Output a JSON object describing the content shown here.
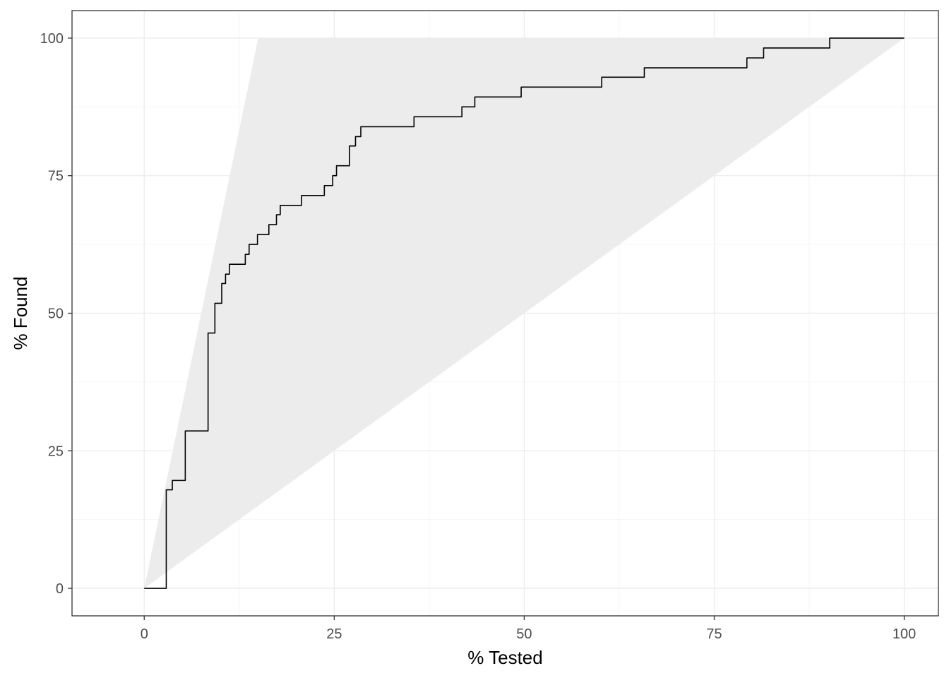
{
  "chart_data": {
    "type": "area",
    "xlabel": "% Tested",
    "ylabel": "% Found",
    "xlim": [
      -9.5,
      104.5
    ],
    "ylim": [
      -5,
      105
    ],
    "x_ticks": [
      0,
      25,
      50,
      75,
      100
    ],
    "y_ticks": [
      0,
      25,
      50,
      75,
      100
    ],
    "grid": true,
    "colors": {
      "band": "#ebebeb",
      "line": "#000000",
      "panel_border": "#333333"
    },
    "band": {
      "name": "",
      "upper": {
        "x": [
          0,
          15,
          100
        ],
        "y": [
          0,
          100,
          100
        ]
      },
      "lower": {
        "x": [
          0,
          100
        ],
        "y": [
          0,
          100
        ]
      }
    },
    "series": [
      {
        "name": "",
        "step": true,
        "x": [
          0,
          2.9,
          3.7,
          5.4,
          8.4,
          9.3,
          10.2,
          10.7,
          11.2,
          13.3,
          13.8,
          14.9,
          16.4,
          17.4,
          17.9,
          20.7,
          23.7,
          24.8,
          25.3,
          27.0,
          27.8,
          28.5,
          29.0,
          35.5,
          41.8,
          43.5,
          49.6,
          60.2,
          65.8,
          79.3,
          81.5,
          90.2,
          100
        ],
        "y": [
          0,
          17.9,
          19.6,
          28.6,
          46.4,
          51.8,
          55.4,
          57.1,
          58.9,
          60.7,
          62.5,
          64.3,
          66.1,
          67.9,
          69.6,
          71.4,
          73.2,
          75.0,
          76.8,
          80.4,
          82.1,
          83.9,
          83.9,
          85.7,
          87.5,
          89.3,
          91.1,
          92.9,
          94.6,
          96.4,
          98.2,
          100,
          100
        ]
      }
    ]
  }
}
